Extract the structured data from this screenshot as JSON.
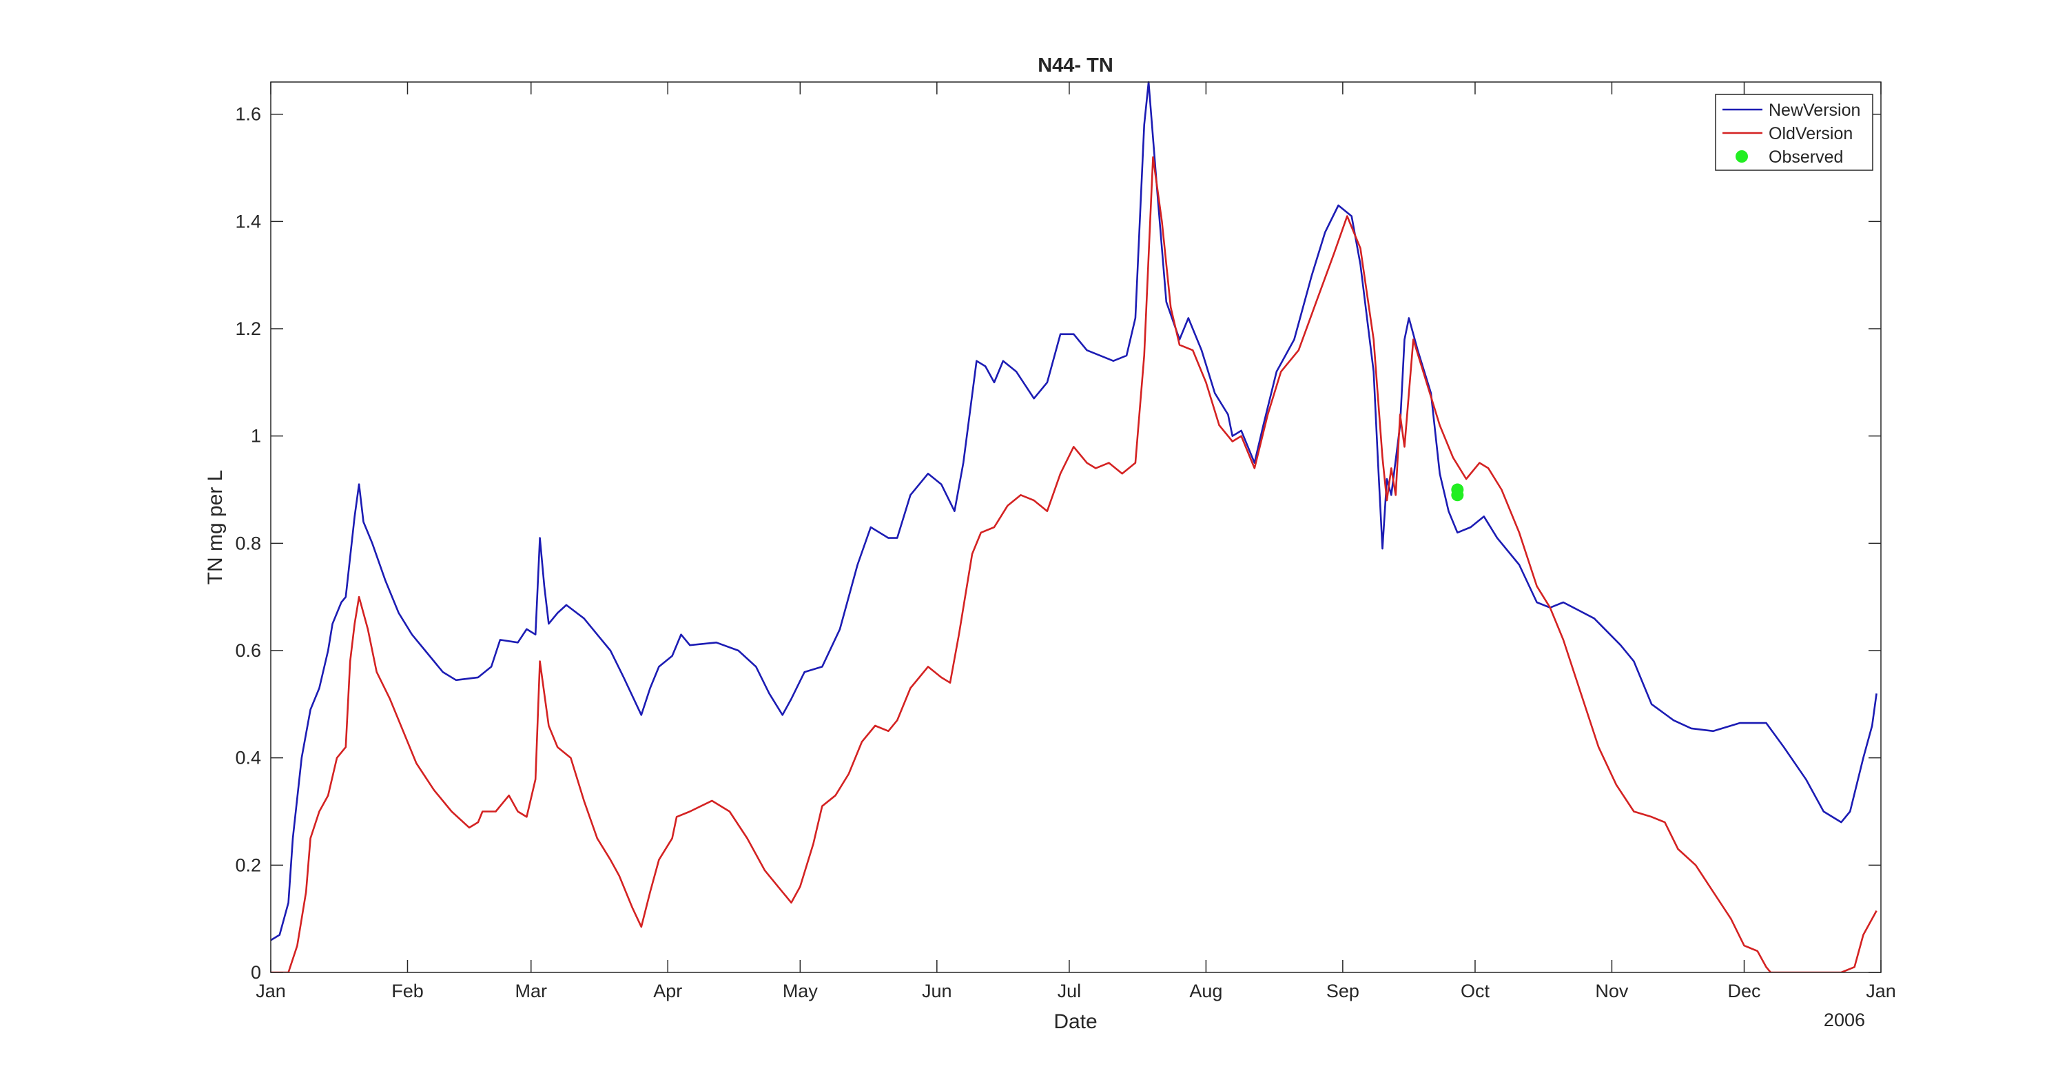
{
  "chart_data": {
    "type": "line",
    "title": "N44- TN",
    "x_label": "Date",
    "y_label": "TN mg per L",
    "x_year_label": "2006",
    "xlim": [
      0,
      365
    ],
    "ylim": [
      0,
      1.66
    ],
    "xticks": [
      {
        "value": 0,
        "label": "Jan"
      },
      {
        "value": 31,
        "label": "Feb"
      },
      {
        "value": 59,
        "label": "Mar"
      },
      {
        "value": 90,
        "label": "Apr"
      },
      {
        "value": 120,
        "label": "May"
      },
      {
        "value": 151,
        "label": "Jun"
      },
      {
        "value": 181,
        "label": "Jul"
      },
      {
        "value": 212,
        "label": "Aug"
      },
      {
        "value": 243,
        "label": "Sep"
      },
      {
        "value": 273,
        "label": "Oct"
      },
      {
        "value": 304,
        "label": "Nov"
      },
      {
        "value": 334,
        "label": "Dec"
      },
      {
        "value": 365,
        "label": "Jan"
      }
    ],
    "yticks": [
      0,
      0.2,
      0.4,
      0.6,
      0.8,
      1,
      1.2,
      1.4,
      1.6
    ],
    "grid": false,
    "legend": "northeast",
    "series": [
      {
        "name": "NewVersion",
        "type": "line",
        "color": "#1c1cb4",
        "x": [
          0,
          2,
          4,
          5,
          7,
          9,
          11,
          13,
          14,
          16,
          17,
          19,
          20,
          21,
          23,
          26,
          29,
          32,
          35,
          39,
          42,
          47,
          50,
          52,
          56,
          58,
          60,
          61,
          62,
          63,
          65,
          67,
          71,
          74,
          77,
          80,
          84,
          86,
          88,
          91,
          93,
          95,
          101,
          106,
          110,
          113,
          116,
          118,
          121,
          125,
          129,
          133,
          136,
          140,
          142,
          145,
          149,
          152,
          155,
          157,
          160,
          162,
          164,
          166,
          169,
          173,
          176,
          179,
          182,
          185,
          191,
          194,
          196,
          198,
          199,
          201,
          203,
          206,
          208,
          211,
          214,
          217,
          218,
          220,
          223,
          225,
          228,
          232,
          236,
          239,
          242,
          245,
          247,
          250,
          251,
          252,
          253,
          254,
          256,
          257,
          258,
          260,
          263,
          265,
          267,
          269,
          272,
          275,
          278,
          283,
          287,
          290,
          293,
          300,
          306,
          309,
          313,
          318,
          322,
          327,
          333,
          339,
          343,
          348,
          352,
          356,
          358,
          361,
          363,
          364
        ],
        "values": [
          0.06,
          0.07,
          0.13,
          0.25,
          0.4,
          0.49,
          0.53,
          0.6,
          0.65,
          0.69,
          0.7,
          0.85,
          0.91,
          0.84,
          0.8,
          0.73,
          0.67,
          0.63,
          0.6,
          0.56,
          0.545,
          0.55,
          0.57,
          0.62,
          0.615,
          0.64,
          0.63,
          0.81,
          0.72,
          0.65,
          0.67,
          0.685,
          0.66,
          0.63,
          0.6,
          0.55,
          0.48,
          0.53,
          0.57,
          0.59,
          0.63,
          0.61,
          0.615,
          0.6,
          0.57,
          0.52,
          0.48,
          0.51,
          0.56,
          0.57,
          0.64,
          0.76,
          0.83,
          0.81,
          0.81,
          0.89,
          0.93,
          0.91,
          0.86,
          0.95,
          1.14,
          1.13,
          1.1,
          1.14,
          1.12,
          1.07,
          1.1,
          1.19,
          1.19,
          1.16,
          1.14,
          1.15,
          1.22,
          1.58,
          1.66,
          1.45,
          1.25,
          1.18,
          1.22,
          1.16,
          1.08,
          1.04,
          1,
          1.01,
          0.95,
          1.02,
          1.12,
          1.18,
          1.3,
          1.38,
          1.43,
          1.41,
          1.32,
          1.12,
          0.95,
          0.79,
          0.92,
          0.89,
          1.02,
          1.18,
          1.22,
          1.16,
          1.08,
          0.93,
          0.86,
          0.82,
          0.83,
          0.85,
          0.81,
          0.76,
          0.69,
          0.68,
          0.69,
          0.66,
          0.61,
          0.58,
          0.5,
          0.47,
          0.455,
          0.45,
          0.465,
          0.465,
          0.42,
          0.36,
          0.3,
          0.28,
          0.3,
          0.4,
          0.46,
          0.52
        ]
      },
      {
        "name": "OldVersion",
        "type": "line",
        "color": "#d42222",
        "x": [
          0,
          4,
          6,
          8,
          9,
          11,
          13,
          15,
          17,
          18,
          19,
          20,
          22,
          24,
          27,
          30,
          33,
          37,
          41,
          45,
          47,
          48,
          51,
          54,
          56,
          58,
          60,
          61,
          63,
          65,
          68,
          71,
          74,
          77,
          79,
          82,
          84,
          86,
          88,
          91,
          92,
          95,
          100,
          104,
          108,
          112,
          116,
          118,
          120,
          123,
          125,
          128,
          131,
          134,
          137,
          140,
          142,
          145,
          149,
          152,
          154,
          156,
          159,
          161,
          164,
          167,
          170,
          173,
          176,
          179,
          182,
          185,
          187,
          190,
          193,
          196,
          198,
          200,
          202,
          204,
          206,
          209,
          212,
          215,
          218,
          220,
          223,
          226,
          229,
          233,
          237,
          241,
          244,
          247,
          250,
          252,
          253,
          254,
          255,
          256,
          257,
          259,
          262,
          265,
          268,
          271,
          274,
          276,
          279,
          283,
          287,
          290,
          293,
          297,
          301,
          305,
          309,
          313,
          316,
          319,
          323,
          327,
          331,
          334,
          337,
          339,
          340,
          356,
          359,
          361,
          364
        ],
        "values": [
          0,
          0,
          0.05,
          0.15,
          0.25,
          0.3,
          0.33,
          0.4,
          0.42,
          0.58,
          0.65,
          0.7,
          0.64,
          0.56,
          0.51,
          0.45,
          0.39,
          0.34,
          0.3,
          0.27,
          0.28,
          0.3,
          0.3,
          0.33,
          0.3,
          0.29,
          0.36,
          0.58,
          0.46,
          0.42,
          0.4,
          0.32,
          0.25,
          0.21,
          0.18,
          0.12,
          0.085,
          0.15,
          0.21,
          0.25,
          0.29,
          0.3,
          0.32,
          0.3,
          0.25,
          0.19,
          0.15,
          0.13,
          0.16,
          0.24,
          0.31,
          0.33,
          0.37,
          0.43,
          0.46,
          0.45,
          0.47,
          0.53,
          0.57,
          0.55,
          0.54,
          0.63,
          0.78,
          0.82,
          0.83,
          0.87,
          0.89,
          0.88,
          0.86,
          0.93,
          0.98,
          0.95,
          0.94,
          0.95,
          0.93,
          0.95,
          1.15,
          1.52,
          1.4,
          1.24,
          1.17,
          1.16,
          1.1,
          1.02,
          0.99,
          1,
          0.94,
          1.04,
          1.12,
          1.16,
          1.25,
          1.34,
          1.41,
          1.35,
          1.18,
          0.96,
          0.88,
          0.94,
          0.89,
          1.04,
          0.98,
          1.18,
          1.1,
          1.02,
          0.96,
          0.92,
          0.95,
          0.94,
          0.9,
          0.82,
          0.72,
          0.68,
          0.62,
          0.52,
          0.42,
          0.35,
          0.3,
          0.29,
          0.28,
          0.23,
          0.2,
          0.15,
          0.1,
          0.05,
          0.04,
          0.01,
          0,
          0,
          0.01,
          0.07,
          0.115
        ]
      },
      {
        "name": "Observed",
        "type": "scatter",
        "color": "#22ee22",
        "x": [
          269,
          269
        ],
        "values": [
          0.9,
          0.89
        ]
      }
    ]
  }
}
